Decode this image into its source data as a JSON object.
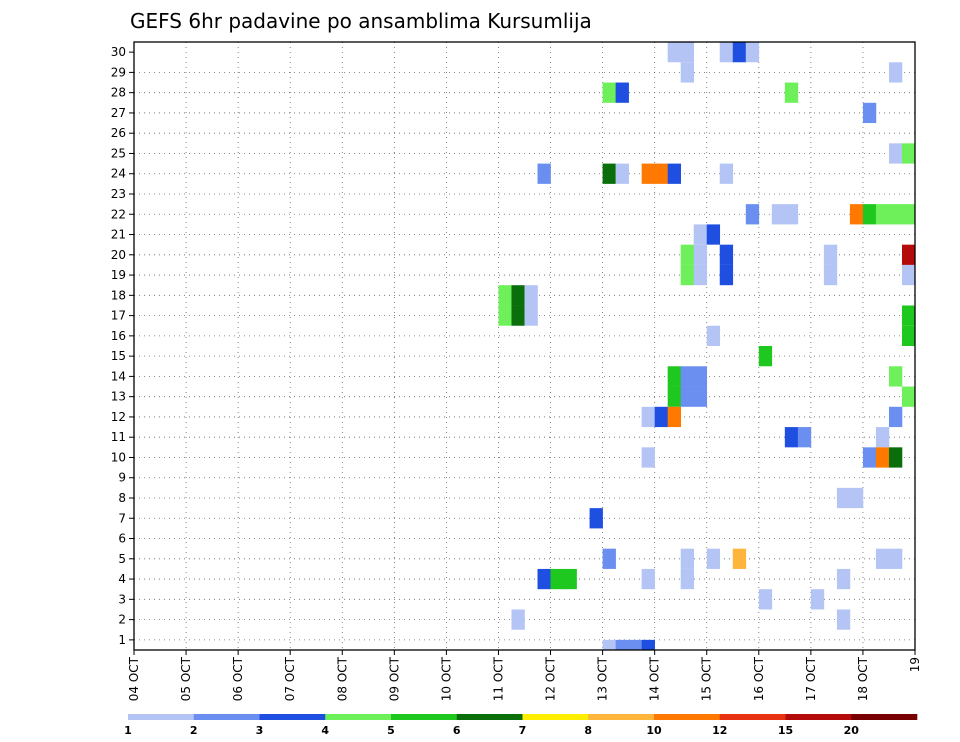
{
  "chart_data": {
    "type": "heatmap",
    "title": "GEFS 6hr padavine po ansamblima Kursumlija",
    "x_tick_labels": [
      "04 OCT",
      "05 OCT",
      "06 OCT",
      "07 OCT",
      "08 OCT",
      "09 OCT",
      "10 OCT",
      "11 OCT",
      "12 OCT",
      "13 OCT",
      "14 OCT",
      "15 OCT",
      "16 OCT",
      "17 OCT",
      "18 OCT",
      "19"
    ],
    "y_tick_labels": [
      "1",
      "2",
      "3",
      "4",
      "5",
      "6",
      "7",
      "8",
      "9",
      "10",
      "11",
      "12",
      "13",
      "14",
      "15",
      "16",
      "17",
      "18",
      "19",
      "20",
      "21",
      "22",
      "23",
      "24",
      "25",
      "26",
      "27",
      "28",
      "29",
      "30"
    ],
    "grid": true,
    "x_steps_per_day": 4,
    "x_total_steps": 60,
    "colorbar": {
      "labels": [
        "1",
        "2",
        "3",
        "4",
        "5",
        "6",
        "7",
        "8",
        "10",
        "12",
        "15",
        "20"
      ],
      "colors": [
        "#b4c5f5",
        "#6a8ff0",
        "#1f4fe0",
        "#6ef05a",
        "#1fc81f",
        "#0a6e0a",
        "#ffee00",
        "#ffb43c",
        "#ff7800",
        "#e83214",
        "#b40a0a",
        "#780000"
      ]
    },
    "cells": [
      {
        "member": 30,
        "step": 41,
        "cat": 1
      },
      {
        "member": 30,
        "step": 42,
        "cat": 1
      },
      {
        "member": 30,
        "step": 45,
        "cat": 1
      },
      {
        "member": 30,
        "step": 46,
        "cat": 3
      },
      {
        "member": 30,
        "step": 47,
        "cat": 1
      },
      {
        "member": 29,
        "step": 42,
        "cat": 1
      },
      {
        "member": 29,
        "step": 58,
        "cat": 1
      },
      {
        "member": 28,
        "step": 36,
        "cat": 4
      },
      {
        "member": 28,
        "step": 37,
        "cat": 3
      },
      {
        "member": 28,
        "step": 50,
        "cat": 4
      },
      {
        "member": 27,
        "step": 56,
        "cat": 2
      },
      {
        "member": 25,
        "step": 58,
        "cat": 1
      },
      {
        "member": 25,
        "step": 59,
        "cat": 4
      },
      {
        "member": 24,
        "step": 31,
        "cat": 2
      },
      {
        "member": 24,
        "step": 36,
        "cat": 6
      },
      {
        "member": 24,
        "step": 37,
        "cat": 1
      },
      {
        "member": 24,
        "step": 39,
        "cat": 9
      },
      {
        "member": 24,
        "step": 40,
        "cat": 9
      },
      {
        "member": 24,
        "step": 41,
        "cat": 3
      },
      {
        "member": 24,
        "step": 45,
        "cat": 1
      },
      {
        "member": 22,
        "step": 47,
        "cat": 2
      },
      {
        "member": 22,
        "step": 49,
        "cat": 1
      },
      {
        "member": 22,
        "step": 50,
        "cat": 1
      },
      {
        "member": 22,
        "step": 55,
        "cat": 9
      },
      {
        "member": 22,
        "step": 56,
        "cat": 5
      },
      {
        "member": 22,
        "step": 57,
        "cat": 4
      },
      {
        "member": 22,
        "step": 58,
        "cat": 4
      },
      {
        "member": 22,
        "step": 59,
        "cat": 4
      },
      {
        "member": 21,
        "step": 43,
        "cat": 1
      },
      {
        "member": 21,
        "step": 44,
        "cat": 3
      },
      {
        "member": 20,
        "step": 42,
        "cat": 4
      },
      {
        "member": 20,
        "step": 43,
        "cat": 1
      },
      {
        "member": 20,
        "step": 45,
        "cat": 3
      },
      {
        "member": 20,
        "step": 53,
        "cat": 1
      },
      {
        "member": 20,
        "step": 59,
        "cat": 11
      },
      {
        "member": 19,
        "step": 42,
        "cat": 4
      },
      {
        "member": 19,
        "step": 43,
        "cat": 1
      },
      {
        "member": 19,
        "step": 45,
        "cat": 3
      },
      {
        "member": 19,
        "step": 53,
        "cat": 1
      },
      {
        "member": 19,
        "step": 59,
        "cat": 1
      },
      {
        "member": 18,
        "step": 28,
        "cat": 4
      },
      {
        "member": 18,
        "step": 29,
        "cat": 6
      },
      {
        "member": 18,
        "step": 30,
        "cat": 1
      },
      {
        "member": 17,
        "step": 28,
        "cat": 4
      },
      {
        "member": 17,
        "step": 29,
        "cat": 6
      },
      {
        "member": 17,
        "step": 30,
        "cat": 1
      },
      {
        "member": 17,
        "step": 59,
        "cat": 5
      },
      {
        "member": 16,
        "step": 44,
        "cat": 1
      },
      {
        "member": 16,
        "step": 59,
        "cat": 5
      },
      {
        "member": 15,
        "step": 48,
        "cat": 5
      },
      {
        "member": 14,
        "step": 41,
        "cat": 5
      },
      {
        "member": 14,
        "step": 42,
        "cat": 2
      },
      {
        "member": 14,
        "step": 43,
        "cat": 2
      },
      {
        "member": 14,
        "step": 58,
        "cat": 4
      },
      {
        "member": 13,
        "step": 41,
        "cat": 5
      },
      {
        "member": 13,
        "step": 42,
        "cat": 2
      },
      {
        "member": 13,
        "step": 43,
        "cat": 2
      },
      {
        "member": 13,
        "step": 59,
        "cat": 4
      },
      {
        "member": 12,
        "step": 39,
        "cat": 1
      },
      {
        "member": 12,
        "step": 40,
        "cat": 3
      },
      {
        "member": 12,
        "step": 41,
        "cat": 9
      },
      {
        "member": 12,
        "step": 58,
        "cat": 2
      },
      {
        "member": 11,
        "step": 50,
        "cat": 3
      },
      {
        "member": 11,
        "step": 51,
        "cat": 2
      },
      {
        "member": 11,
        "step": 57,
        "cat": 1
      },
      {
        "member": 10,
        "step": 39,
        "cat": 1
      },
      {
        "member": 10,
        "step": 56,
        "cat": 2
      },
      {
        "member": 10,
        "step": 57,
        "cat": 9
      },
      {
        "member": 10,
        "step": 58,
        "cat": 6
      },
      {
        "member": 8,
        "step": 54,
        "cat": 1
      },
      {
        "member": 8,
        "step": 55,
        "cat": 1
      },
      {
        "member": 7,
        "step": 35,
        "cat": 3
      },
      {
        "member": 5,
        "step": 36,
        "cat": 2
      },
      {
        "member": 5,
        "step": 42,
        "cat": 1
      },
      {
        "member": 5,
        "step": 44,
        "cat": 1
      },
      {
        "member": 5,
        "step": 46,
        "cat": 8
      },
      {
        "member": 5,
        "step": 57,
        "cat": 1
      },
      {
        "member": 5,
        "step": 58,
        "cat": 1
      },
      {
        "member": 4,
        "step": 31,
        "cat": 3
      },
      {
        "member": 4,
        "step": 32,
        "cat": 5
      },
      {
        "member": 4,
        "step": 33,
        "cat": 5
      },
      {
        "member": 4,
        "step": 39,
        "cat": 1
      },
      {
        "member": 4,
        "step": 42,
        "cat": 1
      },
      {
        "member": 4,
        "step": 54,
        "cat": 1
      },
      {
        "member": 3,
        "step": 48,
        "cat": 1
      },
      {
        "member": 3,
        "step": 52,
        "cat": 1
      },
      {
        "member": 2,
        "step": 29,
        "cat": 1
      },
      {
        "member": 2,
        "step": 54,
        "cat": 1
      },
      {
        "member": 0,
        "step": 36,
        "cat": 1
      },
      {
        "member": 0,
        "step": 37,
        "cat": 2
      },
      {
        "member": 0,
        "step": 38,
        "cat": 2
      },
      {
        "member": 0,
        "step": 39,
        "cat": 3
      }
    ]
  }
}
